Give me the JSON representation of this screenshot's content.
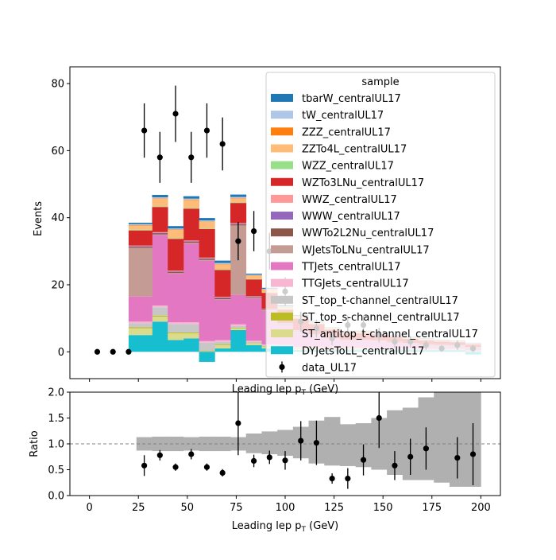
{
  "chart_data": [
    {
      "type": "stacked-step-histogram",
      "panel": "main",
      "ylabel": "Events",
      "xlabel": "Leading lep p_T (GeV)",
      "xlim": [
        -10,
        210
      ],
      "ylim": [
        -8,
        85
      ],
      "yticks": [
        0,
        20,
        40,
        60,
        80
      ],
      "bin_edges": [
        20,
        32,
        40,
        48,
        56,
        64,
        72,
        80,
        88,
        96,
        104,
        112,
        120,
        128,
        136,
        144,
        152,
        160,
        168,
        176,
        184,
        192,
        200
      ],
      "legend_title": "sample",
      "legend_position": "upper-right",
      "series": [
        {
          "name": "DYJetsToLL_centralUL17",
          "color": "#17becf",
          "values": [
            5,
            9,
            3.5,
            4,
            -3,
            1,
            6.5,
            2,
            1,
            1,
            0.5,
            0.5,
            0.5,
            0.5,
            0.5,
            0.5,
            0.5,
            0.5,
            0.5,
            0.5,
            0.5,
            -0.8
          ]
        },
        {
          "name": "ST_antitop_t-channel_centralUL17",
          "color": "#dbdb8d",
          "values": [
            2,
            1.5,
            2,
            1.5,
            0,
            1,
            0.5,
            0.5,
            0.5,
            0.3,
            0.3,
            0.3,
            0.2,
            0.2,
            0.2,
            0.2,
            0.2,
            0.1,
            0.1,
            0.1,
            0.1,
            0.1
          ]
        },
        {
          "name": "ST_top_s-channel_centralUL17",
          "color": "#bcbd22",
          "values": [
            0.3,
            0.3,
            0.3,
            0.3,
            0.2,
            0.2,
            0.2,
            0.1,
            0.1,
            0.1,
            0.1,
            0.1,
            0.1,
            0.1,
            0.1,
            0.1,
            0.1,
            0.1,
            0.1,
            0.1,
            0.1,
            0.1
          ]
        },
        {
          "name": "ST_top_t-channel_centralUL17",
          "color": "#c7c7c7",
          "values": [
            1.2,
            2.5,
            2.5,
            2.5,
            2.5,
            0.8,
            0.5,
            0.4,
            0.3,
            0.3,
            0.3,
            0.3,
            0.2,
            0.2,
            0.2,
            0.2,
            0.2,
            0.2,
            0.1,
            0.1,
            0.1,
            0.1
          ]
        },
        {
          "name": "TTGJets_centralUL17",
          "color": "#f7b6d2",
          "values": [
            0.5,
            0.5,
            0.5,
            0.5,
            0.5,
            0.5,
            0.5,
            0.3,
            0.3,
            0.3,
            0.2,
            0.2,
            0.2,
            0.2,
            0.2,
            0.2,
            0.1,
            0.1,
            0.1,
            0.1,
            0.1,
            0.1
          ]
        },
        {
          "name": "TTJets_centralUL17",
          "color": "#e377c2",
          "values": [
            7.5,
            21,
            14.5,
            23.5,
            24,
            12,
            8.8,
            12.7,
            10,
            6,
            4.5,
            3.5,
            2.5,
            2,
            2,
            1.8,
            1.5,
            1.2,
            1,
            0.8,
            0.7,
            0.6
          ]
        },
        {
          "name": "WJetsToLNu_centralUL17",
          "color": "#c49c94",
          "values": [
            14.5,
            0.2,
            0.2,
            0.2,
            0.2,
            0.2,
            20.7,
            0.2,
            0.2,
            0.2,
            0.2,
            0.1,
            0.1,
            0.1,
            0.1,
            0.1,
            0.1,
            0.1,
            0.1,
            0.1,
            0.1,
            0.1
          ]
        },
        {
          "name": "WWTo2L2Nu_centralUL17",
          "color": "#8c564b",
          "values": [
            0.3,
            0.3,
            0.3,
            0.3,
            0.3,
            0.3,
            0.3,
            0.2,
            0.2,
            0.2,
            0.1,
            0.1,
            0.1,
            0.1,
            0.1,
            0.1,
            0.1,
            0.1,
            0.1,
            0.1,
            0.1,
            0.1
          ]
        },
        {
          "name": "WWW_centralUL17",
          "color": "#9467bd",
          "values": [
            0.2,
            0.2,
            0.2,
            0.2,
            0.2,
            0.2,
            0.2,
            0.1,
            0.1,
            0.1,
            0.1,
            0.1,
            0.1,
            0.1,
            0.1,
            0.1,
            0.1,
            0.1,
            0.1,
            0.1,
            0.1,
            0.1
          ]
        },
        {
          "name": "WWZ_centralUL17",
          "color": "#ff9896",
          "values": [
            0.2,
            0.2,
            0.2,
            0.2,
            0.2,
            0.2,
            0.2,
            0.1,
            0.1,
            0.1,
            0.1,
            0.1,
            0.1,
            0.1,
            0.1,
            0.1,
            0.1,
            0.1,
            0.1,
            0.1,
            0.1,
            0.1
          ]
        },
        {
          "name": "WZTo3LNu_centralUL17",
          "color": "#d62728",
          "values": [
            4.5,
            7.5,
            9.5,
            9.5,
            8.5,
            8.0,
            6.0,
            5.0,
            4.8,
            4.0,
            3.5,
            3.0,
            2.5,
            2.0,
            2.0,
            1.8,
            1.5,
            1.3,
            1.1,
            1.0,
            0.9,
            0.8
          ]
        },
        {
          "name": "WZZ_centralUL17",
          "color": "#98df8a",
          "values": [
            0.2,
            0.2,
            0.2,
            0.2,
            0.2,
            0.2,
            0.2,
            0.1,
            0.1,
            0.1,
            0.1,
            0.1,
            0.1,
            0.1,
            0.1,
            0.1,
            0.1,
            0.1,
            0.1,
            0.1,
            0.1,
            0.1
          ]
        },
        {
          "name": "ZZTo4L_centralUL17",
          "color": "#ffbb78",
          "values": [
            1.3,
            2.3,
            2.5,
            2.4,
            2.0,
            1.5,
            1.2,
            1.0,
            0.8,
            0.6,
            0.5,
            0.4,
            0.3,
            0.3,
            0.3,
            0.2,
            0.2,
            0.2,
            0.2,
            0.1,
            0.1,
            0.1
          ]
        },
        {
          "name": "ZZZ_centralUL17",
          "color": "#ff7f0e",
          "values": [
            0.1,
            0.1,
            0.1,
            0.1,
            0.1,
            0.1,
            0.1,
            0.1,
            0.1,
            0.1,
            0.1,
            0.1,
            0.1,
            0.1,
            0.1,
            0.1,
            0.1,
            0.1,
            0.1,
            0.1,
            0.1,
            0.1
          ]
        },
        {
          "name": "tW_centralUL17",
          "color": "#aec7e8",
          "values": [
            0.3,
            0.3,
            0.3,
            0.3,
            0.3,
            0.3,
            0.3,
            0.2,
            0.2,
            0.2,
            0.2,
            0.1,
            0.1,
            0.1,
            0.1,
            0.1,
            0.1,
            0.1,
            0.1,
            0.1,
            0.1,
            0.1
          ]
        },
        {
          "name": "tbarW_centralUL17",
          "color": "#1f77b4",
          "values": [
            0.4,
            0.7,
            0.7,
            0.7,
            0.7,
            0.7,
            0.7,
            0.3,
            0.3,
            0.3,
            0.2,
            0.2,
            0.1,
            0.1,
            0.1,
            0.1,
            0.1,
            0.1,
            0.1,
            0.1,
            0.1,
            0.1
          ]
        }
      ],
      "data_series": {
        "name": "data_UL17",
        "color": "#000000",
        "x": [
          4,
          12,
          20,
          28,
          36,
          44,
          52,
          60,
          68,
          76,
          84,
          92,
          100,
          108,
          116,
          124,
          132,
          140,
          148,
          156,
          164,
          172,
          180,
          188,
          196
        ],
        "y": [
          0,
          0,
          0,
          66,
          58,
          71,
          58,
          66,
          62,
          33,
          36,
          30,
          18,
          9,
          7,
          4,
          8,
          8,
          5,
          3,
          3,
          2,
          1,
          2,
          1
        ],
        "yerr": [
          0,
          0,
          0,
          8.1,
          7.6,
          8.4,
          7.6,
          8.1,
          7.9,
          5.7,
          6.0,
          5.5,
          4.2,
          3.0,
          2.6,
          2.0,
          2.8,
          2.8,
          2.2,
          1.7,
          1.7,
          1.4,
          1.0,
          1.4,
          1.0
        ]
      }
    },
    {
      "type": "ratio",
      "panel": "ratio",
      "ylabel": "Ratio",
      "xlabel": "Leading lep p_T (GeV)",
      "xlim": [
        -10,
        210
      ],
      "ylim": [
        0,
        2
      ],
      "yticks": [
        0.0,
        0.5,
        1.0,
        1.5,
        2.0
      ],
      "xticks": [
        0,
        25,
        50,
        75,
        100,
        125,
        150,
        175,
        200
      ],
      "reference_line": 1.0,
      "uncertainty_band": {
        "color": "#b0b0b0",
        "bin_edges": [
          24,
          32,
          40,
          48,
          56,
          64,
          72,
          80,
          88,
          96,
          104,
          112,
          120,
          128,
          136,
          144,
          152,
          160,
          168,
          176,
          184,
          192,
          200
        ],
        "low": [
          0.87,
          0.86,
          0.86,
          0.87,
          0.86,
          0.86,
          0.87,
          0.82,
          0.8,
          0.77,
          0.72,
          0.62,
          0.58,
          0.57,
          0.55,
          0.5,
          0.4,
          0.3,
          0.3,
          0.25,
          0.17,
          0.17
        ],
        "high": [
          1.13,
          1.14,
          1.14,
          1.13,
          1.14,
          1.14,
          1.13,
          1.2,
          1.24,
          1.27,
          1.33,
          1.45,
          1.52,
          1.38,
          1.4,
          1.5,
          1.65,
          1.7,
          1.9,
          2.0,
          2.0,
          2.0
        ]
      },
      "points": {
        "x": [
          28,
          36,
          44,
          52,
          60,
          68,
          76,
          84,
          92,
          100,
          108,
          116,
          124,
          132,
          140,
          148,
          156,
          164,
          172,
          180,
          188,
          196
        ],
        "y": [
          0.58,
          0.78,
          0.55,
          0.8,
          0.55,
          0.44,
          1.4,
          0.67,
          0.74,
          0.68,
          1.06,
          1.02,
          0.33,
          0.33,
          0.69,
          1.5,
          0.58,
          0.75,
          0.91,
          null,
          0.73,
          0.8
        ],
        "yerr": [
          0.2,
          0.1,
          0.07,
          0.1,
          0.07,
          0.07,
          0.62,
          0.12,
          0.13,
          0.18,
          0.38,
          0.43,
          0.1,
          0.2,
          0.3,
          0.58,
          0.28,
          0.35,
          0.41,
          null,
          0.4,
          0.6
        ]
      }
    }
  ],
  "tick_labels": {
    "main_y": [
      "0",
      "20",
      "40",
      "60",
      "80"
    ],
    "ratio_y": [
      "0.0",
      "0.5",
      "1.0",
      "1.5",
      "2.0"
    ],
    "ratio_x": [
      "0",
      "25",
      "50",
      "75",
      "100",
      "125",
      "150",
      "175",
      "200"
    ]
  },
  "labels": {
    "main_ylabel": "Events",
    "ratio_ylabel": "Ratio",
    "xlabel_prefix": "Leading lep p",
    "xlabel_sub": "T",
    "xlabel_suffix": " (GeV)",
    "legend_title": "sample",
    "legend_entries": [
      "tbarW_centralUL17",
      "tW_centralUL17",
      "ZZZ_centralUL17",
      "ZZTo4L_centralUL17",
      "WZZ_centralUL17",
      "WZTo3LNu_centralUL17",
      "WWZ_centralUL17",
      "WWW_centralUL17",
      "WWTo2L2Nu_centralUL17",
      "WJetsToLNu_centralUL17",
      "TTJets_centralUL17",
      "TTGJets_centralUL17",
      "ST_top_t-channel_centralUL17",
      "ST_top_s-channel_centralUL17",
      "ST_antitop_t-channel_centralUL17",
      "DYJetsToLL_centralUL17",
      "data_UL17"
    ]
  }
}
